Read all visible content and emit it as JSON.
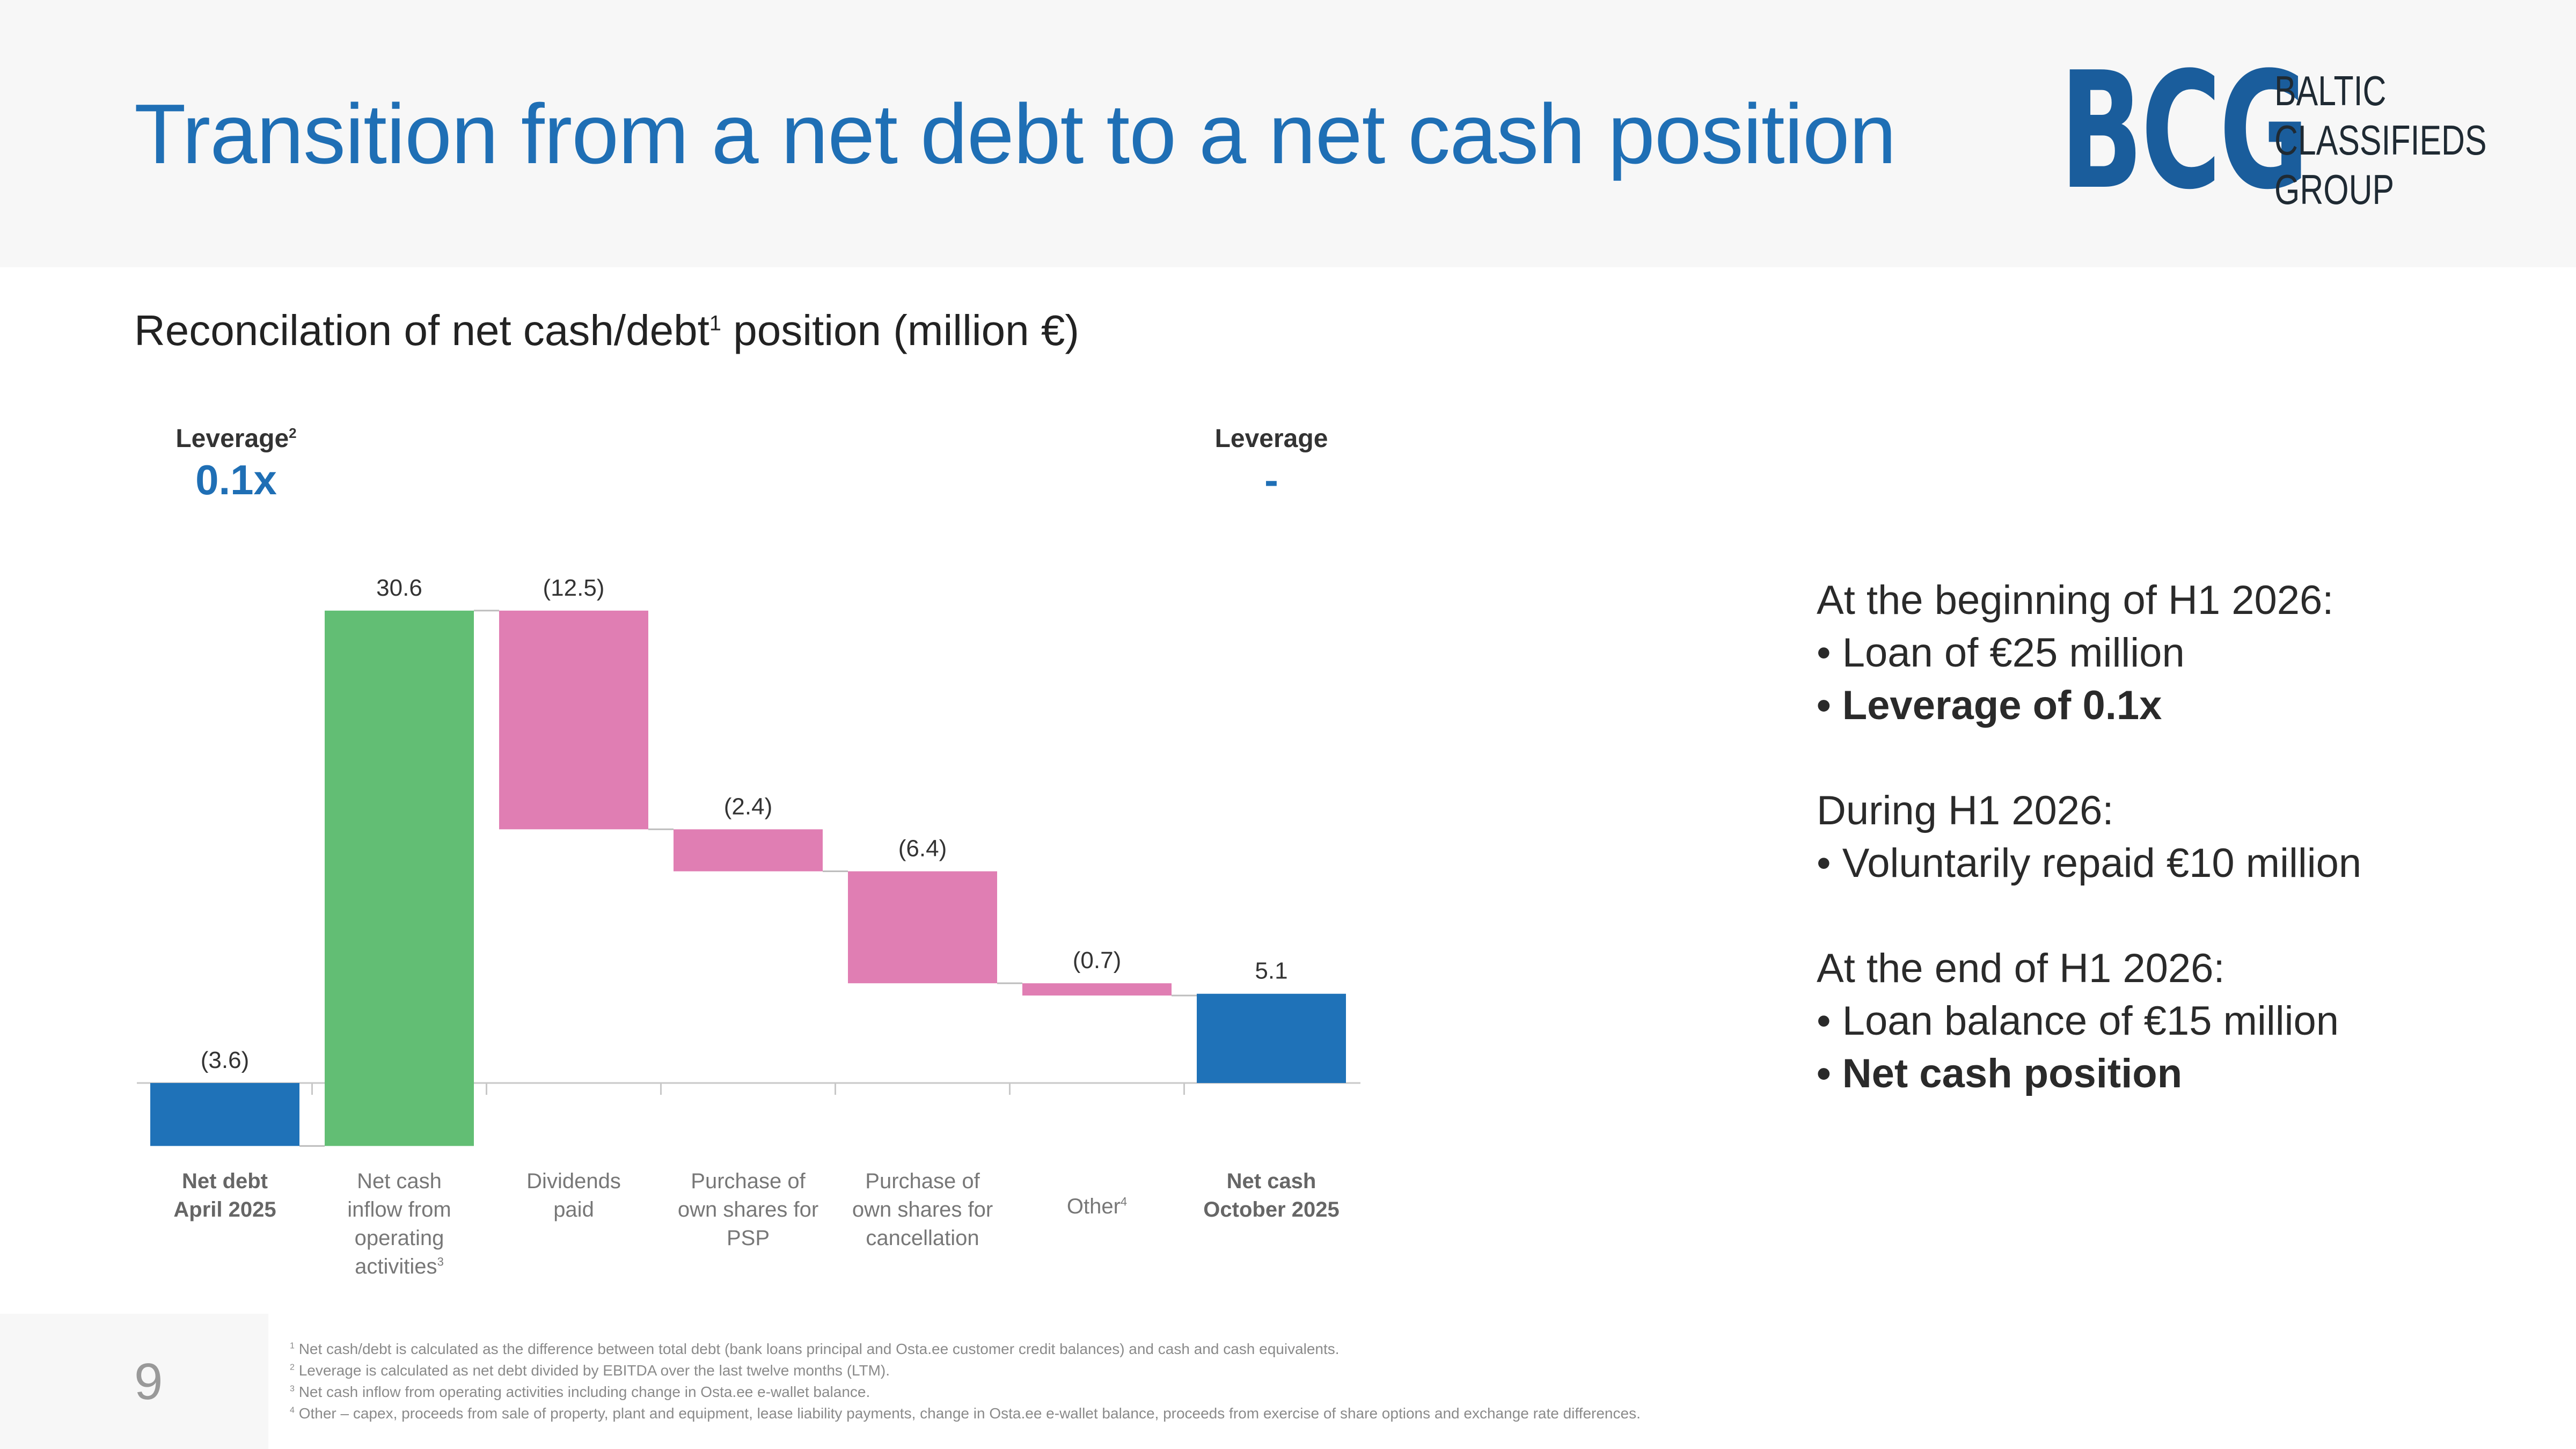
{
  "header": {
    "title": "Transition from a net debt to a net cash position",
    "logo_mark": "BCG",
    "logo_lines": [
      "BALTIC",
      "CLASSIFIEDS",
      "GROUP"
    ]
  },
  "subtitle": {
    "text": "Reconcilation of net cash/debt",
    "sup": "1",
    "suffix": " position (million €)"
  },
  "leverage_left": {
    "label": "Leverage",
    "sup": "2",
    "value": "0.1x"
  },
  "leverage_right": {
    "label": "Leverage",
    "value": "-"
  },
  "chart_data": {
    "type": "bar",
    "subtype": "waterfall",
    "categories": [
      "Net debt April 2025",
      "Net cash inflow from operating activities",
      "Dividends paid",
      "Purchase of own shares for PSP",
      "Purchase of own shares for cancellation",
      "Other",
      "Net cash October 2025"
    ],
    "category_lines": [
      [
        "Net debt",
        "April 2025"
      ],
      [
        "Net cash",
        "inflow from",
        "operating",
        "activities"
      ],
      [
        "Dividends",
        "paid"
      ],
      [
        "Purchase of",
        "own shares for",
        "PSP"
      ],
      [
        "Purchase of",
        "own shares for",
        "cancellation"
      ],
      [
        "Other"
      ],
      [
        "Net cash",
        "October 2025"
      ]
    ],
    "category_sups": [
      "",
      "3",
      "",
      "",
      "",
      "4",
      ""
    ],
    "category_bold": [
      true,
      false,
      false,
      false,
      false,
      false,
      true
    ],
    "values": [
      -3.6,
      30.6,
      -12.5,
      -2.4,
      -6.4,
      -0.7,
      5.1
    ],
    "labels": [
      "(3.6)",
      "30.6",
      "(12.5)",
      "(2.4)",
      "(6.4)",
      "(0.7)",
      "5.1"
    ],
    "kinds": [
      "total",
      "delta",
      "delta",
      "delta",
      "delta",
      "delta",
      "total"
    ],
    "colors": {
      "total": "#1f72b8",
      "increase": "#62be74",
      "decrease": "#e07eb3"
    }
  },
  "notes": [
    {
      "heading": "At the beginning of H1 2026:",
      "bullets": [
        {
          "text": "Loan of €25 million",
          "bold": false
        },
        {
          "text": "Leverage of 0.1x",
          "bold": true
        }
      ]
    },
    {
      "heading": "During H1 2026:",
      "bullets": [
        {
          "text": "Voluntarily repaid €10 million",
          "bold": false
        }
      ]
    },
    {
      "heading": "At the end of H1 2026:",
      "bullets": [
        {
          "text": "Loan balance of €15 million",
          "bold": false
        },
        {
          "text": "Net cash position",
          "bold": true
        }
      ]
    }
  ],
  "page_number": "9",
  "footnotes": [
    {
      "sup": "1",
      "text": "Net cash/debt is calculated as the difference between total debt (bank loans principal and Osta.ee customer credit balances) and cash and cash equivalents."
    },
    {
      "sup": "2",
      "text": "Leverage is calculated as net debt divided by EBITDA over the last twelve months (LTM)."
    },
    {
      "sup": "3",
      "text": "Net cash inflow from operating activities including change in Osta.ee e-wallet balance."
    },
    {
      "sup": "4",
      "text": "Other – capex, proceeds from sale of property, plant and equipment, lease liability payments, change in Osta.ee e-wallet balance, proceeds from exercise of share options and exchange rate differences."
    }
  ]
}
